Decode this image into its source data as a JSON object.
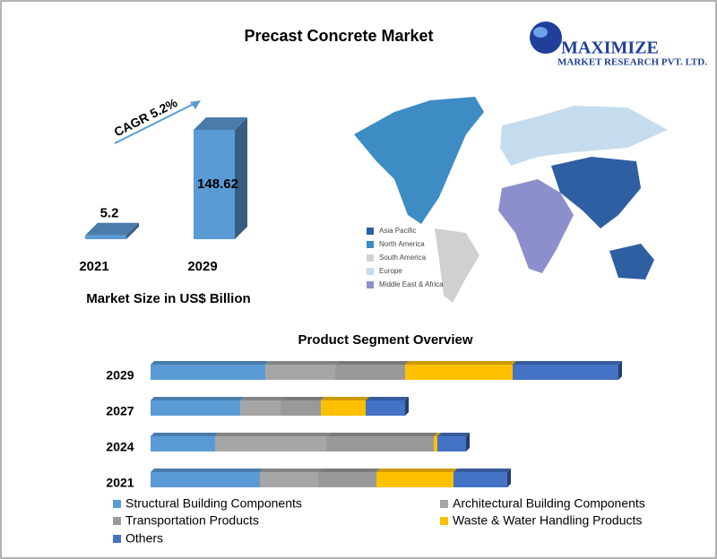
{
  "logo": {
    "name": "MAXIMIZE",
    "tagline": "MARKET RESEARCH PVT. LTD."
  },
  "map": {
    "legend": [
      {
        "label": "Asia Pacific",
        "color": "#2e5fa3"
      },
      {
        "label": "North America",
        "color": "#3d8cc4"
      },
      {
        "label": "South America",
        "color": "#d0d0d0"
      },
      {
        "label": "Europe",
        "color": "#c5dcee"
      },
      {
        "label": "Middle East & Africa",
        "color": "#8d8fcc"
      }
    ]
  },
  "chart_data": [
    {
      "type": "bar3d",
      "title": "Precast Concrete Market",
      "annotation": "CAGR 5.2%",
      "x_label": "Market Size in US$ Billion",
      "categories": [
        "2021",
        "2029"
      ],
      "values": [
        5.2,
        148.62
      ],
      "color": "#5b9bd5"
    },
    {
      "type": "stacked_hbar3d",
      "title": "Product  Segment Overview",
      "categories": [
        "2029",
        "2027",
        "2024",
        "2021"
      ],
      "series": [
        {
          "name": "Structural Building Components",
          "color": "#5b9bd5",
          "values": [
            128,
            100,
            72,
            122
          ]
        },
        {
          "name": "Architectural Building Components",
          "color": "#a6a6a6",
          "values": [
            78,
            45,
            124,
            65
          ]
        },
        {
          "name": "Transportation Products",
          "color": "#999999",
          "values": [
            78,
            45,
            120,
            65
          ]
        },
        {
          "name": "Waste & Water Handling Products",
          "color": "#ffc000",
          "values": [
            120,
            50,
            4,
            86
          ]
        },
        {
          "name": "Others",
          "color": "#4472c4",
          "values": [
            118,
            44,
            32,
            60
          ]
        }
      ]
    }
  ]
}
